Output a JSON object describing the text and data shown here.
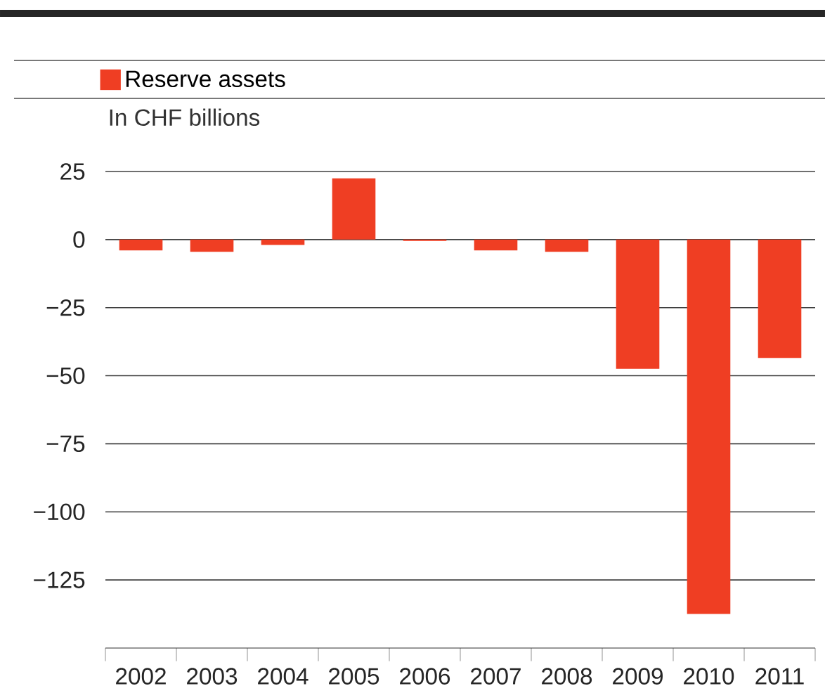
{
  "chart_data": {
    "type": "bar",
    "ylabel": "In CHF billions",
    "categories": [
      "2002",
      "2003",
      "2004",
      "2005",
      "2006",
      "2007",
      "2008",
      "2009",
      "2010",
      "2011"
    ],
    "series": [
      {
        "name": "Reserve assets",
        "color": "#ef3e23",
        "values": [
          -4,
          -4.5,
          -2,
          22.5,
          -0.5,
          -4,
          -4.5,
          -47.5,
          -137.5,
          -43.5
        ]
      }
    ],
    "ylim": [
      -150,
      25
    ],
    "yticks": [
      {
        "value": -125,
        "label": "−125"
      },
      {
        "value": -100,
        "label": "−100"
      },
      {
        "value": -75,
        "label": "−75"
      },
      {
        "value": -50,
        "label": "−50"
      },
      {
        "value": -25,
        "label": "−25"
      },
      0,
      25
    ],
    "grid": "y",
    "legend": "top left"
  }
}
